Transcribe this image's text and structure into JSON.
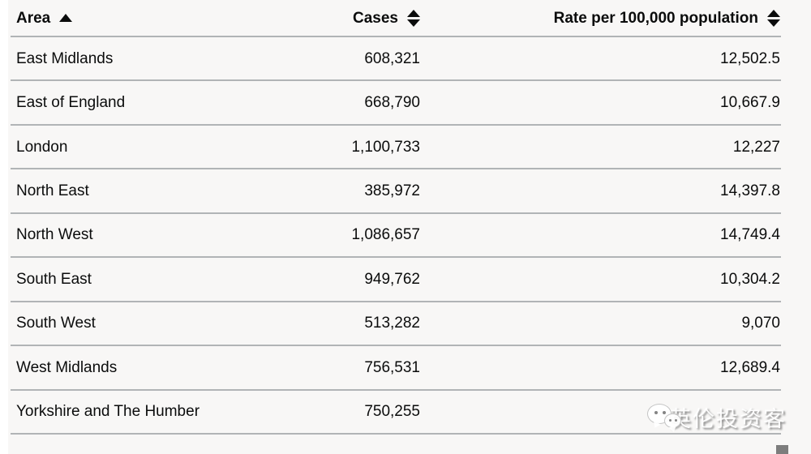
{
  "table": {
    "columns": [
      {
        "label": "Area",
        "sort": "ascending"
      },
      {
        "label": "Cases",
        "sort": "sortable"
      },
      {
        "label": "Rate per 100,000 population",
        "sort": "sortable"
      }
    ],
    "rows": [
      {
        "area": "East Midlands",
        "cases": "608,321",
        "rate": "12,502.5"
      },
      {
        "area": "East of England",
        "cases": "668,790",
        "rate": "10,667.9"
      },
      {
        "area": "London",
        "cases": "1,100,733",
        "rate": "12,227"
      },
      {
        "area": "North East",
        "cases": "385,972",
        "rate": "14,397.8"
      },
      {
        "area": "North West",
        "cases": "1,086,657",
        "rate": "14,749.4"
      },
      {
        "area": "South East",
        "cases": "949,762",
        "rate": "10,304.2"
      },
      {
        "area": "South West",
        "cases": "513,282",
        "rate": "9,070"
      },
      {
        "area": "West Midlands",
        "cases": "756,531",
        "rate": "12,689.4"
      },
      {
        "area": "Yorkshire and The Humber",
        "cases": "750,255",
        "rate": ""
      }
    ]
  },
  "chart_data": {
    "type": "table",
    "columns": [
      "Area",
      "Cases",
      "Rate per 100,000 population"
    ],
    "categories": [
      "East Midlands",
      "East of England",
      "London",
      "North East",
      "North West",
      "South East",
      "South West",
      "West Midlands",
      "Yorkshire and The Humber"
    ],
    "series": [
      {
        "name": "Cases",
        "values": [
          608321,
          668790,
          1100733,
          385972,
          1086657,
          949762,
          513282,
          756531,
          750255
        ]
      },
      {
        "name": "Rate per 100,000 population",
        "values": [
          12502.5,
          10667.9,
          12227,
          14397.8,
          14749.4,
          10304.2,
          9070,
          12689.4,
          null
        ]
      }
    ]
  },
  "watermark": {
    "text": "英伦投资客",
    "icon": "wechat-bubbles-icon"
  },
  "colors": {
    "background": "#f8f7f6",
    "divider": "#b1b4b6",
    "text": "#0b0c0c",
    "scroll_thumb": "#7d7d7d"
  }
}
